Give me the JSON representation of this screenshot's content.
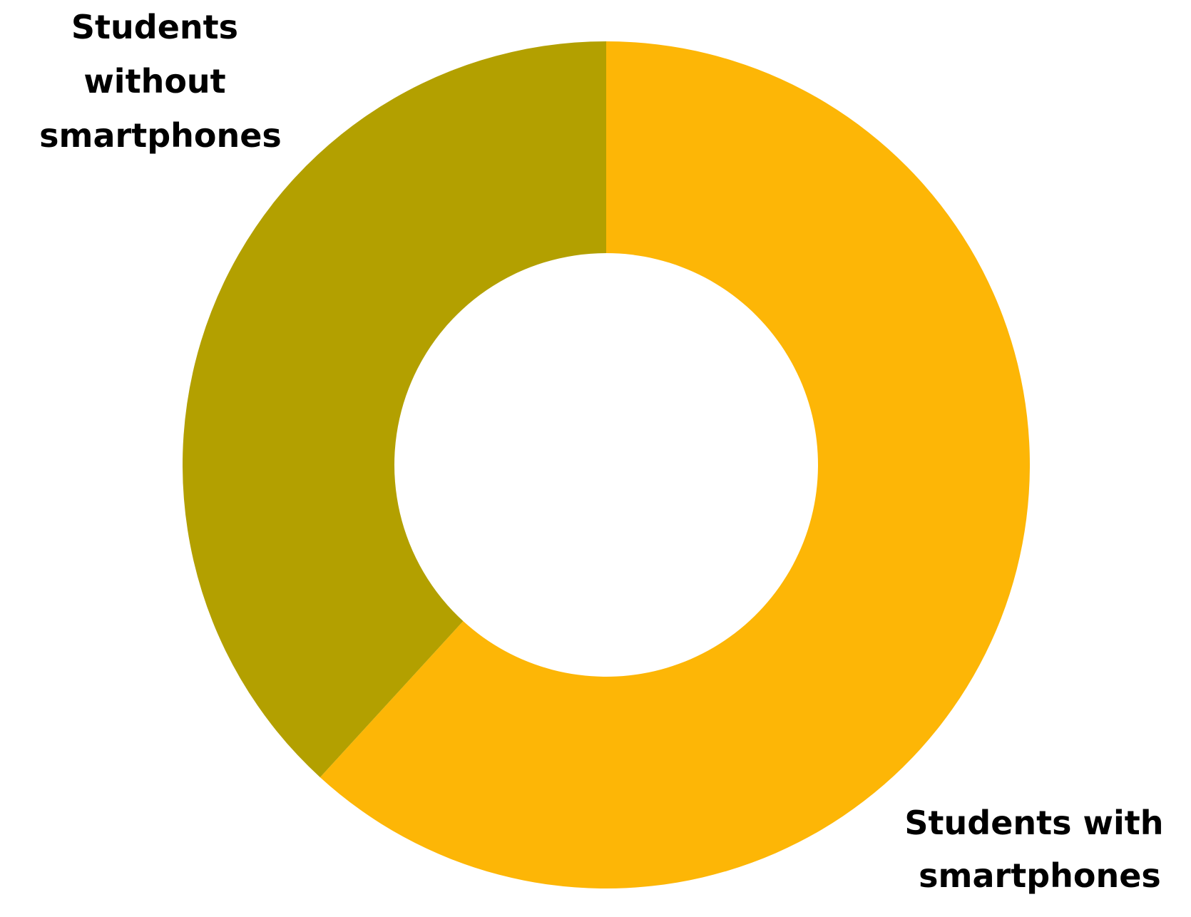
{
  "chart_data": {
    "type": "pie",
    "style": "donut",
    "start_angle": "top",
    "direction": "clockwise",
    "legend": "none",
    "slices": [
      {
        "label": "Students with smartphones",
        "label_lines": [
          "Students with",
          "smartphones"
        ],
        "value": 61.8,
        "color": "#FDB606"
      },
      {
        "label": "Students without smartphones",
        "label_lines": [
          "Students",
          "without",
          "smartphones"
        ],
        "value": 38.2,
        "color": "#B3A000"
      }
    ]
  }
}
